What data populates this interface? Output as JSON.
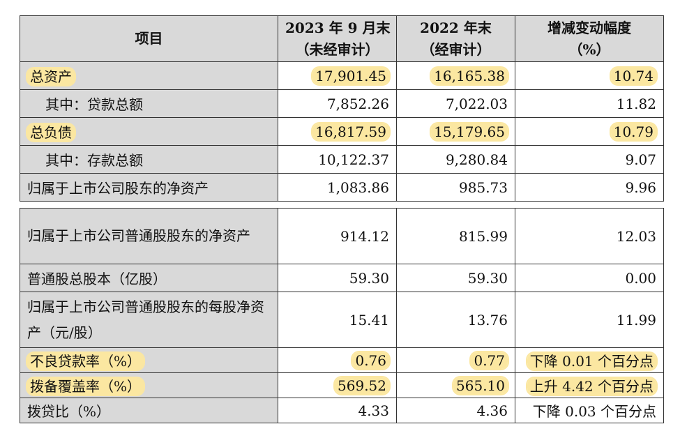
{
  "headers": {
    "item": "项目",
    "col1_line1": "2023 年 9 月末",
    "col1_line2": "（未经审计）",
    "col2_line1": "2022 年末",
    "col2_line2": "（经审计）",
    "col3_line1": "增减变动幅度",
    "col3_line2": "（%）"
  },
  "table1": [
    {
      "label": "总资产",
      "v1": "17,901.45",
      "v2": "16,165.38",
      "v3": "10.74"
    },
    {
      "label": "其中：贷款总额",
      "v1": "7,852.26",
      "v2": "7,022.03",
      "v3": "11.82"
    },
    {
      "label": "总负债",
      "v1": "16,817.59",
      "v2": "15,179.65",
      "v3": "10.79"
    },
    {
      "label": "其中：存款总额",
      "v1": "10,122.37",
      "v2": "9,280.84",
      "v3": "9.07"
    },
    {
      "label": "归属于上市公司股东的净资产",
      "v1": "1,083.86",
      "v2": "985.73",
      "v3": "9.96"
    }
  ],
  "table2": [
    {
      "label": "归属于上市公司普通股股东的净资产",
      "v1": "914.12",
      "v2": "815.99",
      "v3": "12.03"
    },
    {
      "label": "普通股总股本（亿股）",
      "v1": "59.30",
      "v2": "59.30",
      "v3": "0.00"
    },
    {
      "label": "归属于上市公司普通股股东的每股净资产（元/股）",
      "v1": "15.41",
      "v2": "13.76",
      "v3": "11.99"
    },
    {
      "label": "不良贷款率（%）",
      "v1": "0.76",
      "v2": "0.77",
      "v3": "下降 0.01 个百分点"
    },
    {
      "label": "拨备覆盖率（%）",
      "v1": "569.52",
      "v2": "565.10",
      "v3": "上升 4.42 个百分点"
    },
    {
      "label": "拨贷比（%）",
      "v1": "4.33",
      "v2": "4.36",
      "v3": "下降 0.03 个百分点"
    }
  ]
}
